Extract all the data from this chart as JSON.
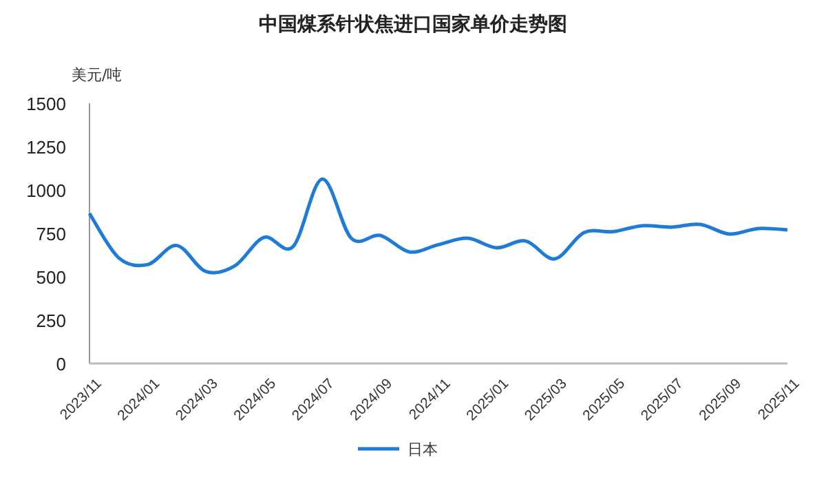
{
  "chart_data": {
    "type": "line",
    "title": "中国煤系针状焦进口国家单价走势图",
    "ylabel": "美元/吨",
    "categories": [
      "2023/11",
      null,
      "2024/01",
      null,
      "2024/03",
      null,
      "2024/05",
      null,
      "2024/07",
      null,
      "2024/09",
      null,
      "2024/11",
      null,
      "2025/01",
      null,
      "2025/03",
      null,
      "2025/05",
      null,
      "2025/07",
      null,
      "2025/09",
      null,
      "2025/11"
    ],
    "series": [
      {
        "name": "日本",
        "color": "#1f7bd6",
        "values": [
          865,
          610,
          570,
          680,
          530,
          563,
          727,
          674,
          1063,
          722,
          738,
          643,
          685,
          722,
          667,
          706,
          603,
          754,
          760,
          794,
          786,
          802,
          746,
          778,
          770
        ]
      }
    ],
    "ylim": [
      0,
      1500
    ],
    "yticks": [
      0,
      250,
      500,
      750,
      1000,
      1250,
      1500
    ],
    "grid": false,
    "legend": "bottom",
    "marker": "none",
    "line_style": "solid"
  }
}
